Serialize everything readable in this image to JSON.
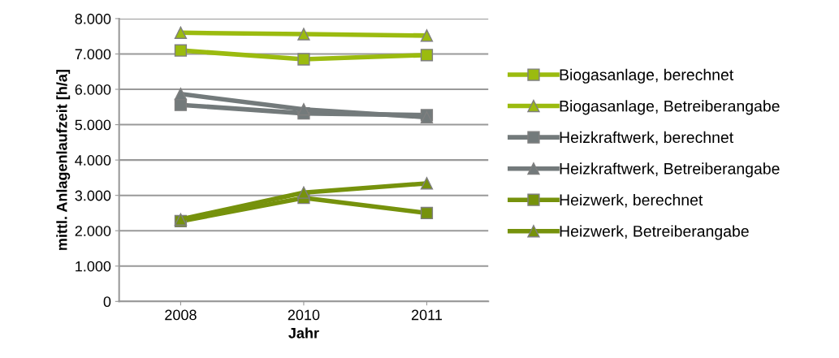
{
  "chart_data": {
    "type": "line",
    "xlabel": "Jahr",
    "ylabel": "mittl. Anlagenlaufzeit [h/a]",
    "categories": [
      "2008",
      "2010",
      "2011"
    ],
    "series": [
      {
        "name": "Biogasanlage, berechnet",
        "color": "#9bbb0f",
        "marker": "square",
        "values": [
          7100,
          6850,
          6970
        ]
      },
      {
        "name": "Biogasanlage, Betreiberangabe",
        "color": "#9bbb0f",
        "marker": "triangle",
        "values": [
          7600,
          7560,
          7520
        ]
      },
      {
        "name": "Heizkraftwerk, berechnet",
        "color": "#737a7b",
        "marker": "square",
        "values": [
          5560,
          5320,
          5270
        ]
      },
      {
        "name": "Heizkraftwerk, Betreiberangabe",
        "color": "#737a7b",
        "marker": "triangle",
        "values": [
          5870,
          5430,
          5210
        ]
      },
      {
        "name": "Heizwerk, berechnet",
        "color": "#76920c",
        "marker": "square",
        "values": [
          2270,
          2930,
          2500
        ]
      },
      {
        "name": "Heizwerk, Betreiberangabe",
        "color": "#76920c",
        "marker": "triangle",
        "values": [
          2320,
          3080,
          3340
        ]
      }
    ],
    "ylim": [
      0,
      8000
    ],
    "yticks": [
      {
        "value": 0,
        "label": "0"
      },
      {
        "value": 1000,
        "label": "1.000"
      },
      {
        "value": 2000,
        "label": "2.000"
      },
      {
        "value": 3000,
        "label": "3.000"
      },
      {
        "value": 4000,
        "label": "4.000"
      },
      {
        "value": 5000,
        "label": "5.000"
      },
      {
        "value": 6000,
        "label": "6.000"
      },
      {
        "value": 7000,
        "label": "7.000"
      },
      {
        "value": 8000,
        "label": "8.000"
      }
    ],
    "grid": "y",
    "legend": "right",
    "line_style": "solid"
  }
}
